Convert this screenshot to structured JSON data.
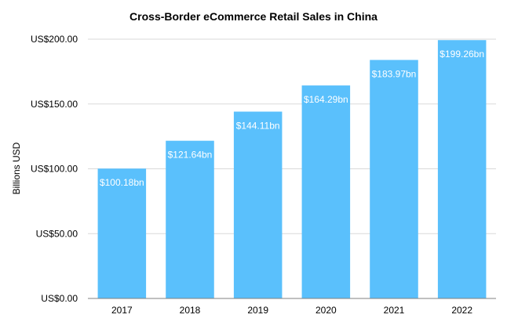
{
  "chart_data": {
    "type": "bar",
    "title": "Cross-Border eCommerce Retail Sales in China",
    "xlabel": "",
    "ylabel": "Billions USD",
    "categories": [
      "2017",
      "2018",
      "2019",
      "2020",
      "2021",
      "2022"
    ],
    "values": [
      100.18,
      121.64,
      144.11,
      164.29,
      183.97,
      199.26
    ],
    "data_labels": [
      "$100.18bn",
      "$121.64bn",
      "$144.11bn",
      "$164.29bn",
      "$183.97bn",
      "$199.26bn"
    ],
    "ylim": [
      0,
      200
    ],
    "y_ticks": [
      0,
      50,
      100,
      150,
      200
    ],
    "y_tick_labels": [
      "US$0.00",
      "US$50.00",
      "US$100.00",
      "US$150.00",
      "US$200.00"
    ],
    "grid": true,
    "legend": "none",
    "bar_color": "#5AC0FC"
  }
}
